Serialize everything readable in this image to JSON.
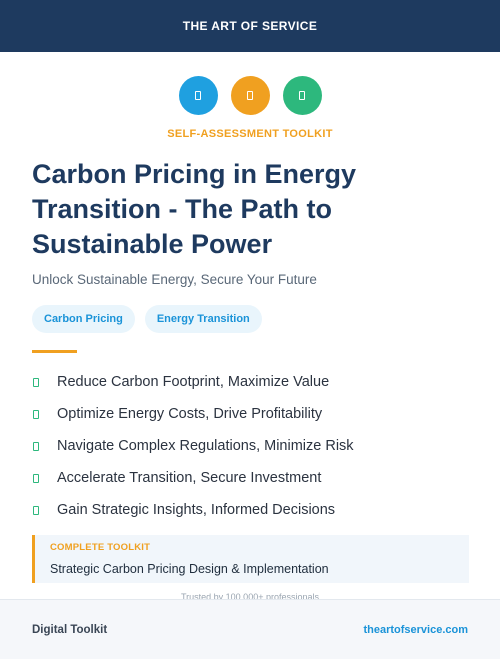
{
  "header": {
    "brand": "THE ART OF SERVICE"
  },
  "icons": [
    {
      "name": "document-icon",
      "color": "#1fa0e0"
    },
    {
      "name": "document-icon",
      "color": "#f0a020"
    },
    {
      "name": "document-icon",
      "color": "#2db87d"
    }
  ],
  "eyebrow": "SELF-ASSESSMENT TOOLKIT",
  "title": "Carbon Pricing in Energy Transition - The Path to Sustainable Power",
  "subtitle": "Unlock Sustainable Energy, Secure Your Future",
  "tags": [
    "Carbon Pricing",
    "Energy Transition"
  ],
  "benefits": [
    "Reduce Carbon Footprint, Maximize Value",
    "Optimize Energy Costs, Drive Profitability",
    "Navigate Complex Regulations, Minimize Risk",
    "Accelerate Transition, Secure Investment",
    "Gain Strategic Insights, Informed Decisions"
  ],
  "callout": {
    "label": "COMPLETE TOOLKIT",
    "text": "Strategic Carbon Pricing Design & Implementation"
  },
  "trusted": "Trusted by 100,000+ professionals",
  "footer": {
    "left": "Digital Toolkit",
    "right": "theartofservice.com"
  },
  "colors": {
    "navy": "#1e3a5f",
    "accent": "#f0a020",
    "blue": "#1fa0e0",
    "green": "#2db87d"
  }
}
